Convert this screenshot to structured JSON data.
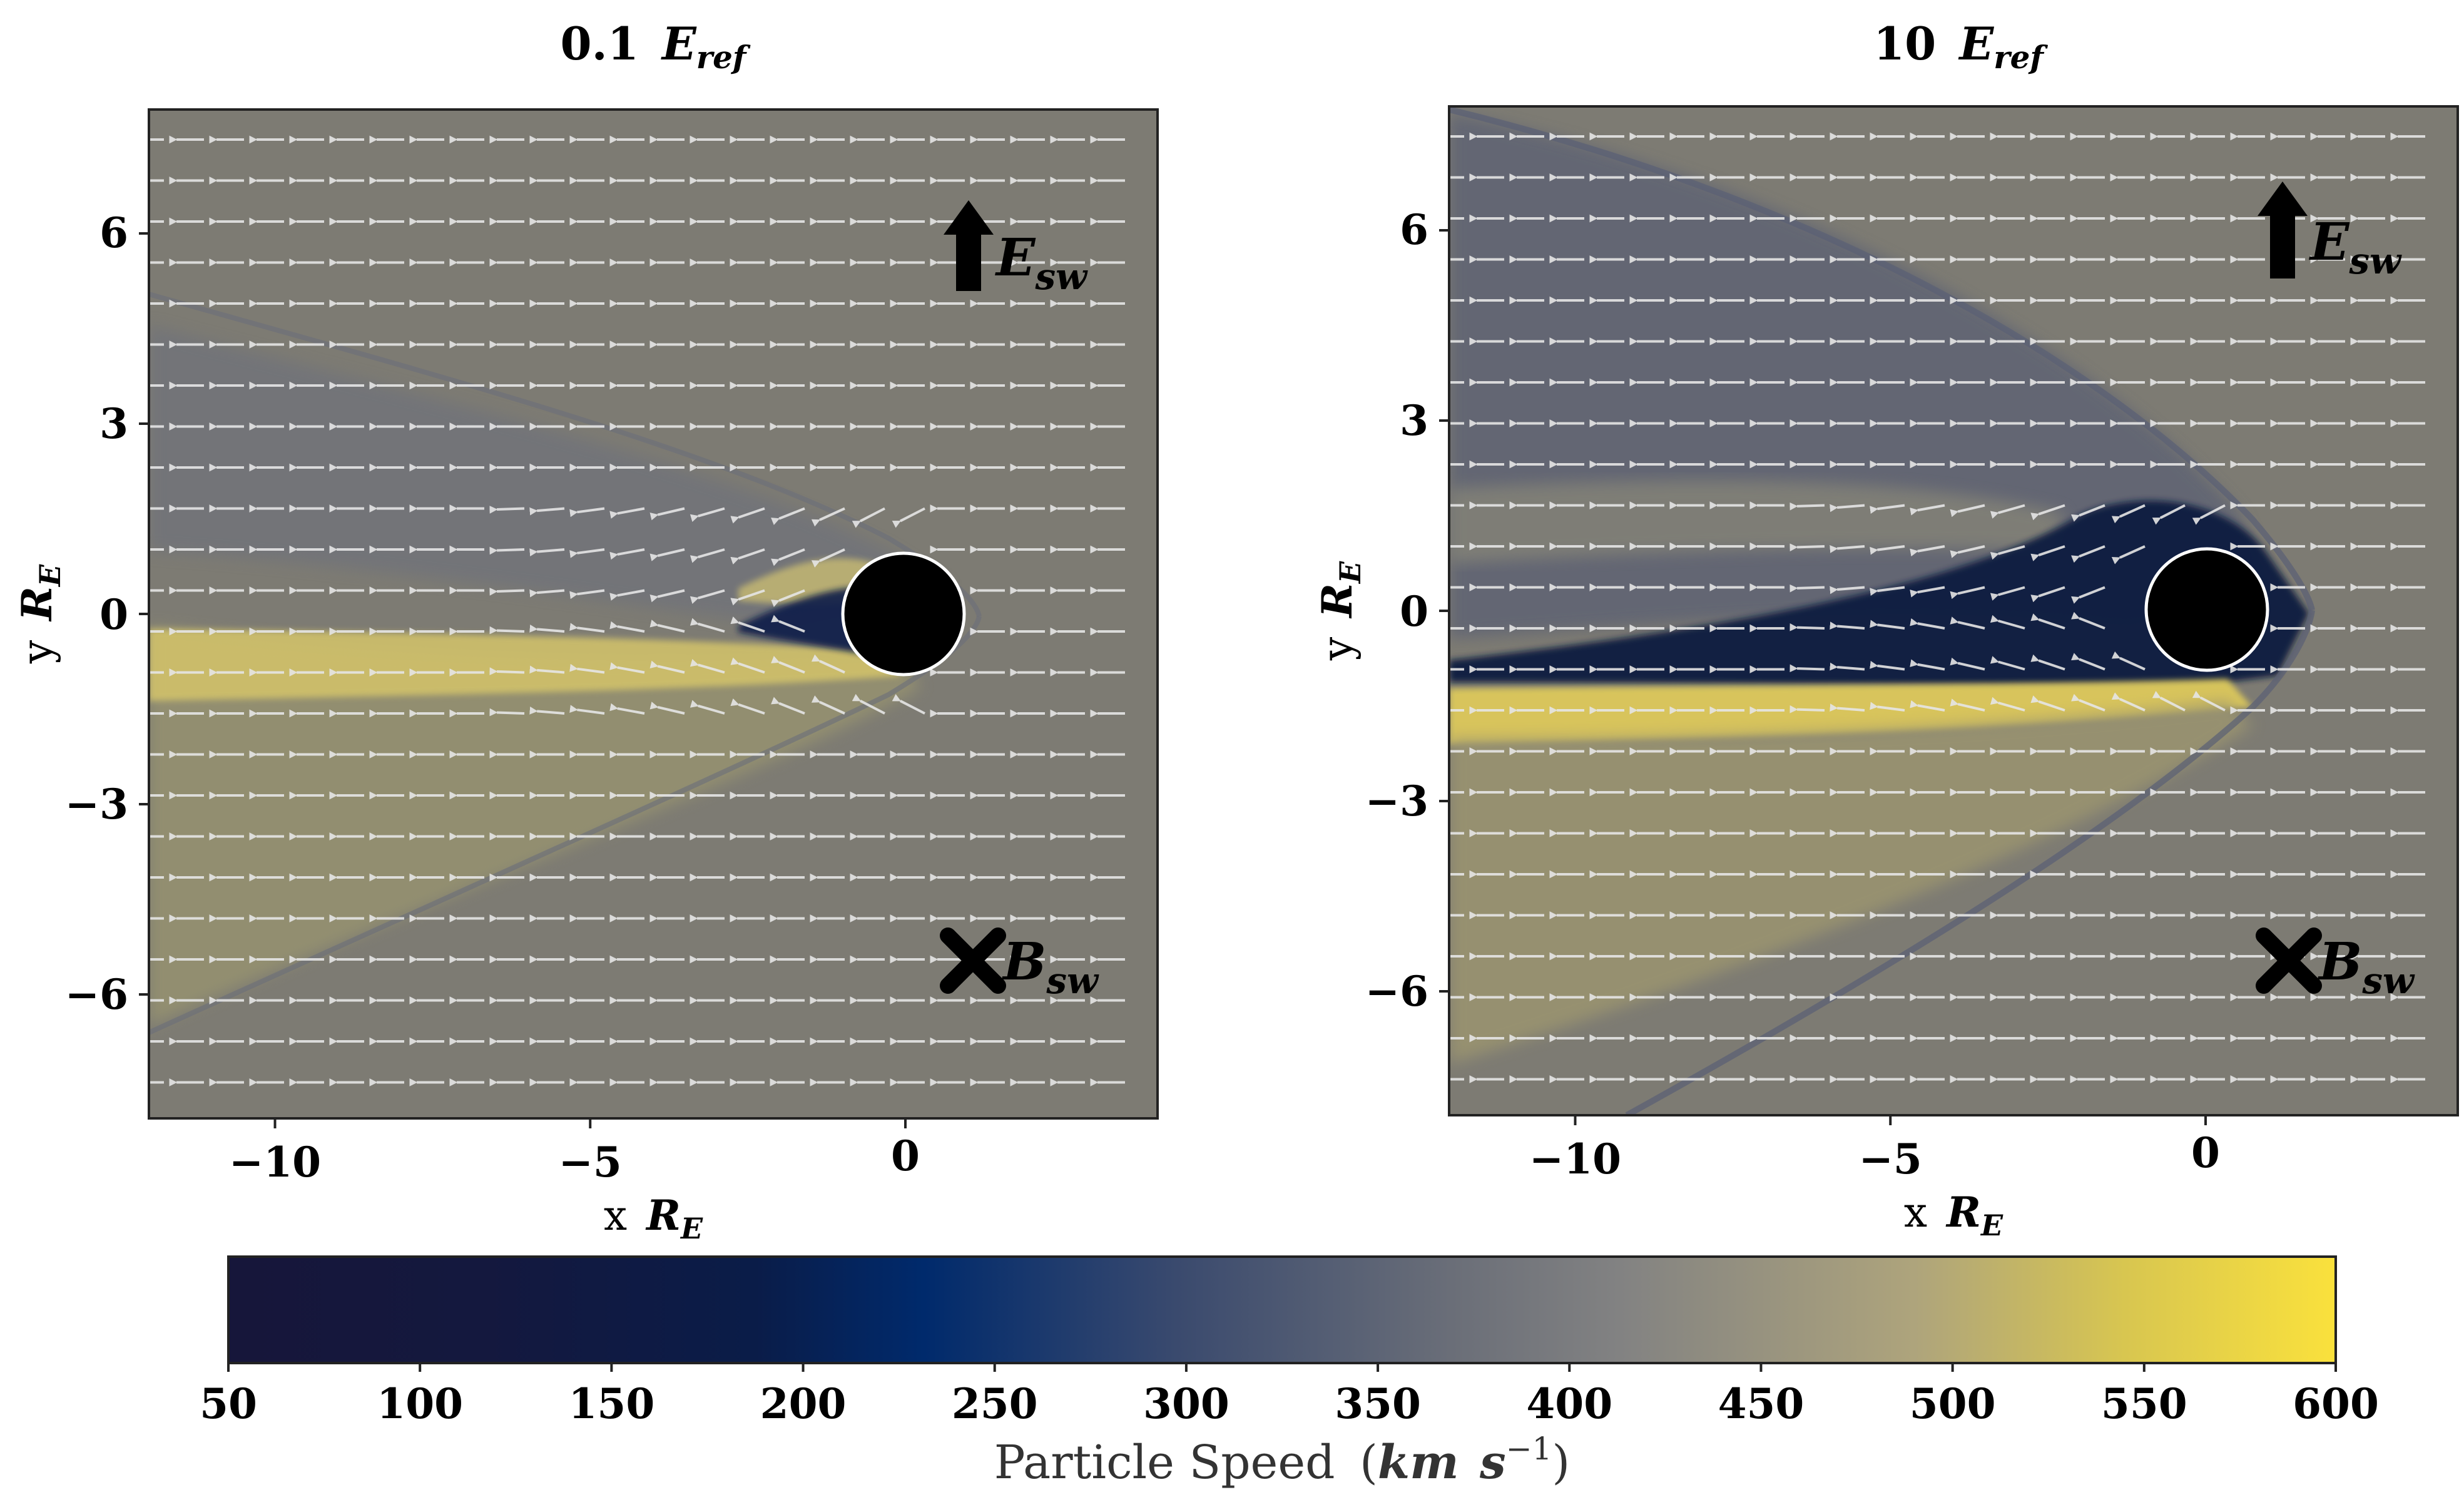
{
  "chart_data": [
    {
      "type": "heatmap",
      "panel": "left",
      "title": {
        "coef": "0.1",
        "symbol": "E",
        "sub": "ref"
      },
      "xlabel": {
        "var": "x",
        "symbol": "R",
        "sub": "E"
      },
      "ylabel": {
        "var": "y",
        "symbol": "R",
        "sub": "E"
      },
      "xlim": [
        -12,
        4
      ],
      "ylim": [
        -8,
        8
      ],
      "xticks": [
        -10,
        -5,
        0
      ],
      "yticks": [
        -6,
        -3,
        0,
        3,
        6
      ],
      "xtick_labels": [
        "−10",
        "−5",
        "0"
      ],
      "ytick_labels": [
        "−6",
        "−3",
        "0",
        "3",
        "6"
      ],
      "planet": {
        "x": 0,
        "y": 0,
        "radius": 1
      },
      "annotations": [
        {
          "label": "E_sw",
          "symbol": "E",
          "sub": "sw",
          "marker": "up-arrow",
          "x": 1.5,
          "y": 6
        },
        {
          "label": "B_sw",
          "symbol": "B",
          "sub": "sw",
          "marker": "x-cross",
          "x": 1.5,
          "y": -5.6
        }
      ],
      "background_speed": 380,
      "arrow_direction": "-x"
    },
    {
      "type": "heatmap",
      "panel": "right",
      "title": {
        "coef": "10",
        "symbol": "E",
        "sub": "ref"
      },
      "xlabel": {
        "var": "x",
        "symbol": "R",
        "sub": "E"
      },
      "ylabel": {
        "var": "y",
        "symbol": "R",
        "sub": "E"
      },
      "xlim": [
        -12,
        4
      ],
      "ylim": [
        -8,
        8
      ],
      "xticks": [
        -10,
        -5,
        0
      ],
      "yticks": [
        -6,
        -3,
        0,
        3,
        6
      ],
      "xtick_labels": [
        "−10",
        "−5",
        "0"
      ],
      "ytick_labels": [
        "−6",
        "−3",
        "0",
        "3",
        "6"
      ],
      "planet": {
        "x": 0,
        "y": 0,
        "radius": 1
      },
      "annotations": [
        {
          "label": "E_sw",
          "symbol": "E",
          "sub": "sw",
          "marker": "up-arrow",
          "x": 1.5,
          "y": 6
        },
        {
          "label": "B_sw",
          "symbol": "B",
          "sub": "sw",
          "marker": "x-cross",
          "x": 1.5,
          "y": -5.6
        }
      ],
      "background_speed": 380,
      "arrow_direction": "-x"
    }
  ],
  "colorbar": {
    "label_text": "Particle Speed",
    "unit_km": "km",
    "unit_s": "s",
    "unit_exp": "−1",
    "min": 50,
    "max": 600,
    "ticks": [
      50,
      100,
      150,
      200,
      250,
      300,
      350,
      400,
      450,
      500,
      550,
      600
    ],
    "tick_labels": [
      "50",
      "100",
      "150",
      "200",
      "250",
      "300",
      "350",
      "400",
      "450",
      "500",
      "550",
      "600"
    ],
    "colors": [
      "#16163a",
      "#0a1c48",
      "#002a6c",
      "#3a4a6e",
      "#6a6e78",
      "#828282",
      "#aea47c",
      "#d8c650",
      "#fae13c"
    ]
  },
  "colors": {
    "background_gray": "#7d7b73",
    "arrow": "#e6e6e6",
    "planet": "#000000",
    "text": "#000000"
  }
}
